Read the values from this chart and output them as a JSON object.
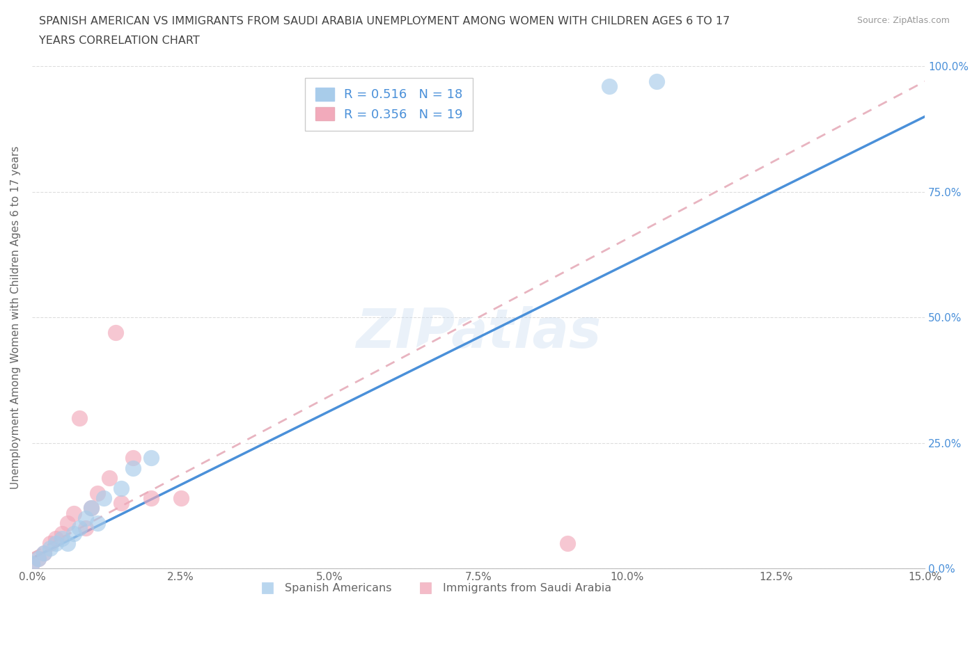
{
  "title_line1": "SPANISH AMERICAN VS IMMIGRANTS FROM SAUDI ARABIA UNEMPLOYMENT AMONG WOMEN WITH CHILDREN AGES 6 TO 17",
  "title_line2": "YEARS CORRELATION CHART",
  "source": "Source: ZipAtlas.com",
  "ylabel": "Unemployment Among Women with Children Ages 6 to 17 years",
  "xlim": [
    0.0,
    15.0
  ],
  "ylim": [
    0.0,
    100.0
  ],
  "xticks": [
    0.0,
    2.5,
    5.0,
    7.5,
    10.0,
    12.5,
    15.0
  ],
  "yticks": [
    0.0,
    25.0,
    50.0,
    75.0,
    100.0
  ],
  "xtick_labels": [
    "0.0%",
    "2.5%",
    "5.0%",
    "7.5%",
    "10.0%",
    "12.5%",
    "15.0%"
  ],
  "ytick_labels": [
    "0.0%",
    "25.0%",
    "50.0%",
    "75.0%",
    "100.0%"
  ],
  "blue_R": 0.516,
  "blue_N": 18,
  "pink_R": 0.356,
  "pink_N": 19,
  "blue_color": "#A8CCEA",
  "pink_color": "#F2AABB",
  "blue_line_color": "#4A90D9",
  "pink_line_color": "#E8B4C0",
  "watermark": "ZIPatlas",
  "blue_scatter_x": [
    0.0,
    0.1,
    0.2,
    0.3,
    0.4,
    0.5,
    0.6,
    0.7,
    0.8,
    0.9,
    1.0,
    1.1,
    1.2,
    1.5,
    1.7,
    2.0,
    9.7,
    10.5
  ],
  "blue_scatter_y": [
    1.0,
    2.0,
    3.0,
    4.0,
    5.0,
    6.0,
    5.0,
    7.0,
    8.0,
    10.0,
    12.0,
    9.0,
    14.0,
    16.0,
    20.0,
    22.0,
    96.0,
    97.0
  ],
  "pink_scatter_x": [
    0.0,
    0.1,
    0.2,
    0.3,
    0.4,
    0.5,
    0.6,
    0.7,
    0.8,
    0.9,
    1.0,
    1.1,
    1.3,
    1.4,
    1.5,
    1.7,
    2.0,
    2.5,
    9.0
  ],
  "pink_scatter_y": [
    1.0,
    2.0,
    3.0,
    5.0,
    6.0,
    7.0,
    9.0,
    11.0,
    30.0,
    8.0,
    12.0,
    15.0,
    18.0,
    47.0,
    13.0,
    22.0,
    14.0,
    14.0,
    5.0
  ],
  "background_color": "#FFFFFF",
  "grid_color": "#DDDDDD",
  "title_color": "#444444",
  "axis_color": "#666666",
  "right_axis_color": "#4A90D9",
  "legend_label_blue": "Spanish Americans",
  "legend_label_pink": "Immigrants from Saudi Arabia"
}
